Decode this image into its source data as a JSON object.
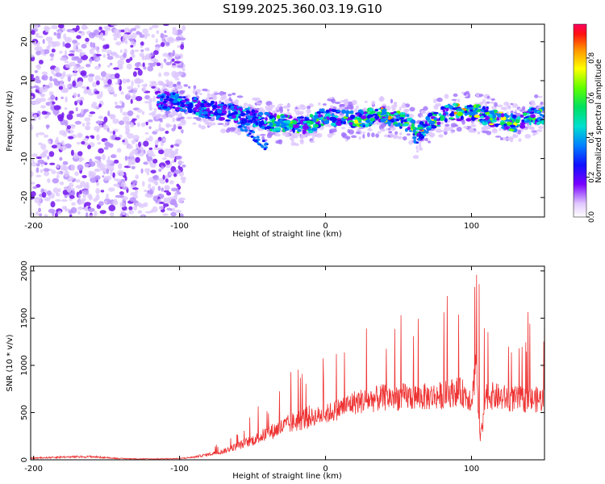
{
  "title": "S199.2025.360.03.19.G10",
  "chart_data": [
    {
      "type": "heatmap",
      "title": "S199.2025.360.03.19.G10",
      "xlabel": "Height of straight line (km)",
      "ylabel": "Frequency (Hz)",
      "xlim": [
        -202,
        150
      ],
      "ylim": [
        -25,
        24.5
      ],
      "xticks": [
        -200,
        -100,
        0,
        100
      ],
      "yticks": [
        -20,
        -10,
        0,
        10,
        20
      ],
      "colorbar": {
        "label": "Normalized spectral amplitude",
        "range": [
          0,
          0.97
        ],
        "ticks": [
          "0.0",
          "0.2",
          "0.4",
          "0.6",
          "0.8"
        ],
        "tick_values": [
          0,
          0.2,
          0.4,
          0.6,
          0.8
        ]
      },
      "ridge": {
        "description": "frequency ridge center (Hz) vs height (km)",
        "x": [
          -115,
          -100,
          -90,
          -80,
          -70,
          -60,
          -50,
          -40,
          -30,
          -20,
          -10,
          0,
          10,
          20,
          30,
          40,
          50,
          55,
          60,
          62,
          65,
          70,
          80,
          90,
          100,
          110,
          120,
          130,
          140,
          150
        ],
        "y": [
          5,
          4.5,
          3.5,
          2.5,
          2,
          1.5,
          0.5,
          -0.5,
          -1,
          -1.5,
          -1,
          1,
          0,
          0,
          0.5,
          1,
          0,
          -0.5,
          -2,
          -5,
          -3,
          -1,
          1,
          2,
          2,
          1,
          0,
          -1,
          1,
          1
        ]
      },
      "noise_region": [
        -202,
        -97
      ]
    },
    {
      "type": "line",
      "xlabel": "Height of straight line (km)",
      "ylabel": "SNR (10 * v/v)",
      "xlim": [
        -202,
        150
      ],
      "ylim": [
        0,
        2050
      ],
      "xticks": [
        -200,
        -100,
        0,
        100
      ],
      "yticks": [
        0,
        500,
        1000,
        1500,
        2000
      ],
      "series": [
        {
          "name": "SNR",
          "color": "#ee3333",
          "envelope_x": [
            -202,
            -180,
            -160,
            -140,
            -120,
            -100,
            -90,
            -80,
            -70,
            -60,
            -50,
            -40,
            -30,
            -20,
            -10,
            0,
            10,
            20,
            30,
            40,
            50,
            60,
            70,
            80,
            85,
            90,
            95,
            100,
            103,
            106,
            108,
            110,
            120,
            130,
            140,
            150
          ],
          "envelope_y": [
            20,
            35,
            40,
            15,
            10,
            15,
            35,
            70,
            110,
            180,
            250,
            340,
            420,
            500,
            560,
            600,
            680,
            760,
            790,
            820,
            830,
            830,
            830,
            850,
            880,
            900,
            870,
            800,
            1200,
            300,
            600,
            860,
            820,
            800,
            790,
            800
          ]
        }
      ]
    }
  ]
}
